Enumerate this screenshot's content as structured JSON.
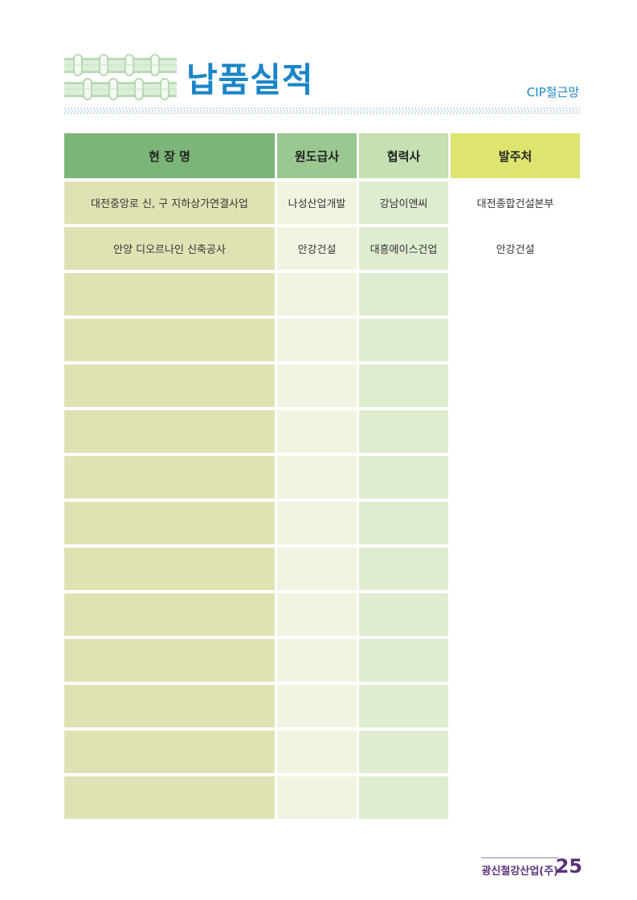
{
  "page": {
    "title": "납품실적",
    "subtitle": "CIP철근망",
    "footer_company": "광신철강산업(주)",
    "page_number": "25"
  },
  "table": {
    "headers": [
      "현 장 명",
      "원도급사",
      "협력사",
      "발주처"
    ],
    "rows": [
      [
        "대전중앙로 신, 구 지하상가연결사업",
        "나성산업개발",
        "강남이앤씨",
        "대전종합건설본부"
      ],
      [
        "안양 디오르나인 신축공사",
        "안강건설",
        "대흥에이스건업",
        "안강건설"
      ],
      [
        "",
        "",
        "",
        ""
      ],
      [
        "",
        "",
        "",
        ""
      ],
      [
        "",
        "",
        "",
        ""
      ],
      [
        "",
        "",
        "",
        ""
      ],
      [
        "",
        "",
        "",
        ""
      ],
      [
        "",
        "",
        "",
        ""
      ],
      [
        "",
        "",
        "",
        ""
      ],
      [
        "",
        "",
        "",
        ""
      ],
      [
        "",
        "",
        "",
        ""
      ],
      [
        "",
        "",
        "",
        ""
      ],
      [
        "",
        "",
        "",
        ""
      ],
      [
        "",
        "",
        "",
        ""
      ]
    ]
  },
  "colors": {
    "title": "#1a85c8",
    "footer": "#5a2f7c",
    "header_col1": "#7cb578",
    "header_col2": "#9bc890",
    "header_col3": "#c5e0b2",
    "header_col4": "#dde56e",
    "body_col1": "#e1e2b4",
    "body_col2": "#f2f4e2",
    "body_col3": "#dfecd0"
  },
  "icons": {
    "header_graphic": "rebar-cage-icon"
  }
}
